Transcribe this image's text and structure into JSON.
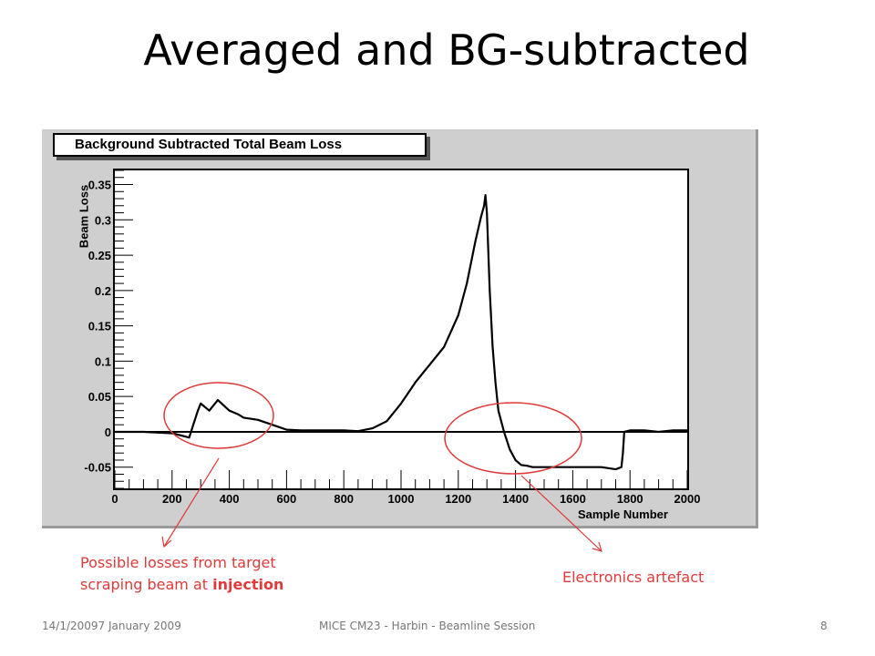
{
  "slide": {
    "title": "Averaged and BG-subtracted",
    "footer_date": "14/1/20097 January 2009",
    "footer_center": "MICE CM23 - Harbin - Beamline Session",
    "footer_page": "8"
  },
  "annotations": {
    "left_line1": "Possible losses from target",
    "left_line2_prefix": "scraping beam at ",
    "left_line2_bold": "injection",
    "right": "Electronics artefact"
  },
  "colors": {
    "annotation": "#e03a3a",
    "panel": "#cfcfcf",
    "series": "#000000"
  },
  "chart_data": {
    "type": "line",
    "title": "Background Subtracted Total Beam Loss",
    "xlabel": "Sample Number",
    "ylabel": "Beam Loss",
    "xlim": [
      0,
      2000
    ],
    "ylim": [
      -0.08,
      0.37
    ],
    "xticks": [
      0,
      200,
      400,
      600,
      800,
      1000,
      1200,
      1400,
      1600,
      1800,
      2000
    ],
    "yticks": [
      -0.05,
      0,
      0.05,
      0.1,
      0.15,
      0.2,
      0.25,
      0.3,
      0.35
    ],
    "ytick_labels": [
      "-0.05",
      "0",
      "0.05",
      "0.1",
      "0.15",
      "0.2",
      "0.25",
      "0.3",
      "0.35"
    ],
    "grid": false,
    "zero_line": true,
    "series": [
      {
        "x": [
          0,
          100,
          200,
          260,
          270,
          290,
          300,
          330,
          360,
          400,
          430,
          450,
          500,
          550,
          600,
          650,
          700,
          800,
          850,
          900,
          950,
          1000,
          1050,
          1080,
          1100,
          1150,
          1200,
          1230,
          1260,
          1280,
          1290,
          1295,
          1300,
          1310,
          1320,
          1330,
          1340,
          1360,
          1380,
          1400,
          1420,
          1440,
          1460,
          1500,
          1550,
          1600,
          1650,
          1700,
          1750,
          1770,
          1775,
          1780,
          1800,
          1850,
          1900,
          1950,
          2000
        ],
        "y": [
          0,
          0,
          -0.002,
          -0.008,
          0.005,
          0.03,
          0.04,
          0.03,
          0.045,
          0.03,
          0.025,
          0.02,
          0.017,
          0.01,
          0.003,
          0.002,
          0.002,
          0.002,
          0.001,
          0.005,
          0.015,
          0.04,
          0.07,
          0.085,
          0.095,
          0.12,
          0.165,
          0.21,
          0.27,
          0.305,
          0.32,
          0.335,
          0.31,
          0.2,
          0.12,
          0.07,
          0.03,
          0.0,
          -0.025,
          -0.04,
          -0.047,
          -0.048,
          -0.05,
          -0.05,
          -0.05,
          -0.05,
          -0.05,
          -0.05,
          -0.053,
          -0.05,
          -0.03,
          0.0,
          0.002,
          0.002,
          0.0,
          0.002,
          0.002
        ]
      }
    ]
  }
}
